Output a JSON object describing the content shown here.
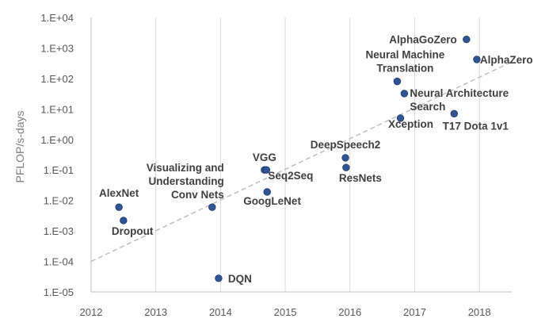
{
  "chart_data": {
    "type": "scatter",
    "ylabel": "PFLOP/s-days",
    "xlim": [
      2012,
      2018.5
    ],
    "ylim_log10": [
      -5,
      4
    ],
    "log_y": true,
    "x_ticks": [
      "2012",
      "2013",
      "2014",
      "2015",
      "2016",
      "2017",
      "2018"
    ],
    "y_ticks": [
      "1.E-05",
      "1.E-04",
      "1.E-03",
      "1.E-02",
      "1.E-01",
      "1.E+00",
      "1.E+01",
      "1.E+02",
      "1.E+03",
      "1.E+04"
    ],
    "grid": "vertical",
    "point_color": "#2F5597",
    "trendline": {
      "style": "dashed",
      "color": "#BFBFBF",
      "from": [
        2012,
        0.0001
      ],
      "to": [
        2018.5,
        350
      ]
    },
    "points": [
      {
        "name": "AlexNet",
        "x": 2012.43,
        "y": 0.006
      },
      {
        "name": "Dropout",
        "x": 2012.5,
        "y": 0.0022
      },
      {
        "name": "Visualizing and Understanding Conv Nets",
        "x": 2013.87,
        "y": 0.006
      },
      {
        "name": "DQN",
        "x": 2013.97,
        "y": 2.8e-05
      },
      {
        "name": "VGG",
        "x": 2014.68,
        "y": 0.1
      },
      {
        "name": "Seq2Seq",
        "x": 2014.71,
        "y": 0.1
      },
      {
        "name": "GoogLeNet",
        "x": 2014.72,
        "y": 0.019
      },
      {
        "name": "DeepSpeech2",
        "x": 2015.93,
        "y": 0.25
      },
      {
        "name": "ResNets",
        "x": 2015.94,
        "y": 0.12
      },
      {
        "name": "Neural Machine Translation",
        "x": 2016.73,
        "y": 80
      },
      {
        "name": "Neural Architecture Search",
        "x": 2016.84,
        "y": 32
      },
      {
        "name": "Xception",
        "x": 2016.78,
        "y": 5
      },
      {
        "name": "T17 Dota 1v1",
        "x": 2017.61,
        "y": 7
      },
      {
        "name": "AlphaGoZero",
        "x": 2017.8,
        "y": 1900
      },
      {
        "name": "AlphaZero",
        "x": 2017.96,
        "y": 420
      }
    ]
  }
}
